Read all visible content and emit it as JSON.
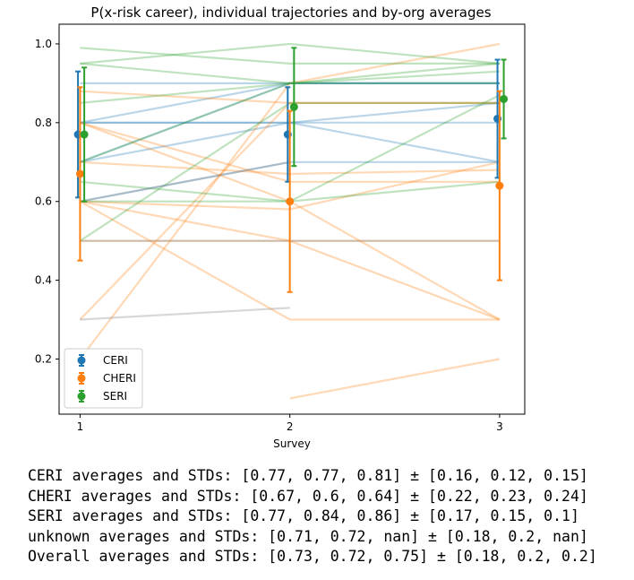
{
  "chart_data": {
    "type": "line",
    "title": "P(x-risk career), individual trajectories and by-org averages",
    "xlabel": "Survey",
    "ylabel": "",
    "x_ticks": [
      1,
      2,
      3
    ],
    "y_ticks": [
      "0.2",
      "0.4",
      "0.6",
      "0.8",
      "1.0"
    ],
    "xlim": [
      0.9,
      3.12
    ],
    "ylim": [
      0.06,
      1.05
    ],
    "grid": false,
    "legend_position": "lower-left",
    "series": [
      {
        "name": "CERI",
        "color": "#1f77b4",
        "x": [
          1,
          2,
          3
        ],
        "means": [
          0.77,
          0.77,
          0.81
        ],
        "stds": [
          0.16,
          0.12,
          0.15
        ],
        "x_offset": -0.01
      },
      {
        "name": "CHERI",
        "color": "#ff7f0e",
        "x": [
          1,
          2,
          3
        ],
        "means": [
          0.67,
          0.6,
          0.64
        ],
        "stds": [
          0.22,
          0.23,
          0.24
        ],
        "x_offset": 0.0
      },
      {
        "name": "SERI",
        "color": "#2ca02c",
        "x": [
          1,
          2,
          3
        ],
        "means": [
          0.77,
          0.84,
          0.86
        ],
        "stds": [
          0.17,
          0.15,
          0.1
        ],
        "x_offset": 0.02
      }
    ],
    "trajectories": [
      {
        "org": "CERI",
        "color": "#1f77b4",
        "y": [
          0.9,
          0.9,
          0.9
        ]
      },
      {
        "org": "CERI",
        "color": "#1f77b4",
        "y": [
          0.8,
          0.8,
          0.8
        ]
      },
      {
        "org": "CERI",
        "color": "#1f77b4",
        "y": [
          0.8,
          0.9,
          0.9
        ]
      },
      {
        "org": "CERI",
        "color": "#1f77b4",
        "y": [
          0.7,
          0.9,
          0.9
        ]
      },
      {
        "org": "CERI",
        "color": "#1f77b4",
        "y": [
          0.6,
          0.7,
          0.7
        ]
      },
      {
        "org": "CERI",
        "color": "#1f77b4",
        "y": [
          0.7,
          0.8,
          0.7
        ]
      },
      {
        "org": "CERI",
        "color": "#1f77b4",
        "y": [
          0.5,
          0.5,
          0.5
        ]
      },
      {
        "org": "CERI",
        "color": "#1f77b4",
        "y": [
          0.8,
          0.8,
          0.85
        ]
      },
      {
        "org": "CHERI",
        "color": "#ff7f0e",
        "y": [
          0.88,
          0.85,
          0.85
        ]
      },
      {
        "org": "CHERI",
        "color": "#ff7f0e",
        "y": [
          0.8,
          0.6,
          0.3
        ]
      },
      {
        "org": "CHERI",
        "color": "#ff7f0e",
        "y": [
          0.6,
          0.58,
          0.7
        ]
      },
      {
        "org": "CHERI",
        "color": "#ff7f0e",
        "y": [
          0.6,
          0.3,
          0.3
        ]
      },
      {
        "org": "CHERI",
        "color": "#ff7f0e",
        "y": [
          0.3,
          0.85,
          0.85
        ]
      },
      {
        "org": "CHERI",
        "color": "#ff7f0e",
        "y": [
          0.2,
          0.9,
          1.0
        ]
      },
      {
        "org": "CHERI",
        "color": "#ff7f0e",
        "y": [
          0.8,
          0.65,
          0.65
        ]
      },
      {
        "org": "CHERI",
        "color": "#ff7f0e",
        "y": [
          0.6,
          0.5,
          0.3
        ]
      },
      {
        "org": "CHERI",
        "color": "#ff7f0e",
        "y": [
          0.5,
          0.5,
          0.5
        ]
      },
      {
        "org": "CHERI",
        "color": "#ff7f0e",
        "y": [
          0.7,
          0.67,
          0.68
        ]
      },
      {
        "org": "CHERI",
        "color": "#ff7f0e",
        "y": [
          null,
          0.1,
          0.2
        ]
      },
      {
        "org": "SERI",
        "color": "#2ca02c",
        "y": [
          0.99,
          0.95,
          0.95
        ]
      },
      {
        "org": "SERI",
        "color": "#2ca02c",
        "y": [
          0.95,
          1.0,
          0.95
        ]
      },
      {
        "org": "SERI",
        "color": "#2ca02c",
        "y": [
          0.95,
          0.9,
          0.9
        ]
      },
      {
        "org": "SERI",
        "color": "#2ca02c",
        "y": [
          0.85,
          0.9,
          0.93
        ]
      },
      {
        "org": "SERI",
        "color": "#2ca02c",
        "y": [
          0.7,
          0.9,
          0.95
        ]
      },
      {
        "org": "SERI",
        "color": "#2ca02c",
        "y": [
          0.65,
          0.6,
          0.65
        ]
      },
      {
        "org": "SERI",
        "color": "#2ca02c",
        "y": [
          0.5,
          0.85,
          0.85
        ]
      },
      {
        "org": "SERI",
        "color": "#2ca02c",
        "y": [
          0.6,
          0.6,
          0.87
        ]
      },
      {
        "org": "unknown",
        "color": "#7f7f7f",
        "y": [
          0.3,
          0.33,
          null
        ]
      },
      {
        "org": "unknown",
        "color": "#7f7f7f",
        "y": [
          0.6,
          0.7,
          null
        ]
      }
    ]
  },
  "console_output": [
    "CERI averages and STDs: [0.77, 0.77, 0.81] ± [0.16, 0.12, 0.15]",
    "CHERI averages and STDs: [0.67, 0.6, 0.64] ± [0.22, 0.23, 0.24]",
    "SERI averages and STDs: [0.77, 0.84, 0.86] ± [0.17, 0.15, 0.1]",
    "unknown averages and STDs: [0.71, 0.72, nan] ± [0.18, 0.2, nan]",
    "Overall averages and STDs: [0.73, 0.72, 0.75] ± [0.18, 0.2, 0.2]"
  ]
}
